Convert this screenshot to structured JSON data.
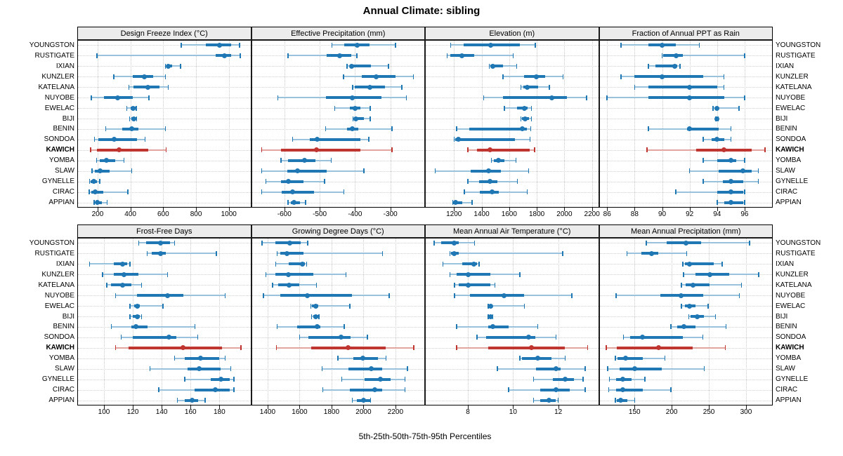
{
  "title": "Annual Climate: sibling",
  "xlabel": "5th-25th-50th-75th-95th Percentiles",
  "colors": {
    "series_blue": "#1f77b4",
    "series_blue_light": "#9ac2dd",
    "highlight_red": "#bf3530",
    "highlight_red_light": "#e2a5a0",
    "strip_bg": "#ececec",
    "grid": "#c9c9c9",
    "panel_border": "#1a1a1a",
    "background": "#ffffff"
  },
  "chart_data": {
    "type": "dotplot-percentile-trellis",
    "percentile_labels": [
      "5th",
      "25th",
      "50th",
      "75th",
      "95th"
    ],
    "stations": [
      "YOUNGSTON",
      "RUSTIGATE",
      "IXIAN",
      "KUNZLER",
      "KATELANA",
      "NUYOBE",
      "EWELAC",
      "BIJI",
      "BENIN",
      "SONDOA",
      "KAWICH",
      "YOMBA",
      "SLAW",
      "GYNELLE",
      "CIRAC",
      "APPIAN"
    ],
    "highlight_station": "KAWICH",
    "layout": {
      "grid_rows": 2,
      "grid_cols": 4,
      "gridlines": "dotted",
      "station_labels": "both-sides"
    },
    "panels": [
      {
        "title": "Design Freeze Index (°C)",
        "ticks": [
          200,
          400,
          600,
          800,
          1000
        ],
        "domain": [
          76,
          1136
        ],
        "values": [
          [
            710,
            860,
            945,
            1012,
            1065
          ],
          [
            195,
            920,
            975,
            1015,
            1070
          ],
          [
            613,
            620,
            630,
            655,
            705
          ],
          [
            299,
            413,
            485,
            540,
            613
          ],
          [
            390,
            417,
            505,
            575,
            630
          ],
          [
            162,
            237,
            322,
            413,
            513
          ],
          [
            379,
            400,
            417,
            431,
            435
          ],
          [
            396,
            406,
            421,
            434,
            438
          ],
          [
            250,
            350,
            410,
            448,
            613
          ],
          [
            180,
            205,
            300,
            440,
            490
          ],
          [
            157,
            197,
            330,
            510,
            618
          ],
          [
            194,
            211,
            254,
            306,
            360
          ],
          [
            165,
            183,
            214,
            275,
            407
          ],
          [
            152,
            159,
            176,
            197,
            214
          ],
          [
            148,
            162,
            187,
            233,
            384
          ],
          [
            179,
            187,
            200,
            226,
            258
          ]
        ]
      },
      {
        "title": "Effective Precipitation (mm)",
        "ticks": [
          -600,
          -500,
          -400,
          -300
        ],
        "domain": [
          -694,
          -202
        ],
        "values": [
          [
            -465,
            -430,
            -393,
            -360,
            -285
          ],
          [
            -590,
            -480,
            -443,
            -410,
            -395
          ],
          [
            -423,
            -415,
            -410,
            -355,
            -305
          ],
          [
            -433,
            -380,
            -340,
            -285,
            -235
          ],
          [
            -407,
            -400,
            -359,
            -315,
            -268
          ],
          [
            -618,
            -483,
            -407,
            -325,
            -255
          ],
          [
            -457,
            -415,
            -400,
            -385,
            -357
          ],
          [
            -406,
            -402,
            -397,
            -375,
            -357
          ],
          [
            -483,
            -423,
            -407,
            -390,
            -295
          ],
          [
            -577,
            -528,
            -507,
            -385,
            -361
          ],
          [
            -664,
            -610,
            -510,
            -385,
            -295
          ],
          [
            -610,
            -590,
            -543,
            -512,
            -467
          ],
          [
            -664,
            -592,
            -562,
            -480,
            -375
          ],
          [
            -652,
            -610,
            -588,
            -546,
            -486
          ],
          [
            -664,
            -608,
            -576,
            -516,
            -432
          ],
          [
            -590,
            -582,
            -572,
            -556,
            -540
          ]
        ]
      },
      {
        "title": "Elevation (m)",
        "ticks": [
          1200,
          1400,
          1600,
          1800,
          2000,
          2200
        ],
        "domain": [
          990,
          2250
        ],
        "values": [
          [
            1175,
            1270,
            1465,
            1675,
            1790
          ],
          [
            1150,
            1175,
            1255,
            1345,
            1630
          ],
          [
            1455,
            1465,
            1480,
            1555,
            1655
          ],
          [
            1555,
            1710,
            1795,
            1860,
            1990
          ],
          [
            1685,
            1705,
            1730,
            1810,
            1890
          ],
          [
            1415,
            1555,
            1910,
            2020,
            2160
          ],
          [
            1565,
            1655,
            1710,
            1735,
            1760
          ],
          [
            1685,
            1695,
            1715,
            1745,
            1760
          ],
          [
            1220,
            1310,
            1695,
            1730,
            1755
          ],
          [
            1200,
            1210,
            1230,
            1640,
            1750
          ],
          [
            1300,
            1365,
            1460,
            1750,
            1785
          ],
          [
            1470,
            1490,
            1520,
            1565,
            1650
          ],
          [
            1065,
            1320,
            1450,
            1540,
            1740
          ],
          [
            1300,
            1380,
            1460,
            1515,
            1660
          ],
          [
            1275,
            1385,
            1475,
            1525,
            1730
          ],
          [
            1190,
            1195,
            1210,
            1260,
            1330
          ]
        ]
      },
      {
        "title": "Fraction of Annual PPT as Rain",
        "ticks": [
          86,
          88,
          90,
          92,
          94,
          96
        ],
        "domain": [
          85.4,
          98.05
        ],
        "values": [
          [
            87,
            89,
            90,
            91,
            92.7
          ],
          [
            90,
            90.1,
            91,
            91.5,
            96
          ],
          [
            89,
            89.5,
            90.9,
            91.1,
            91.3
          ],
          [
            87,
            88,
            90,
            93,
            94.5
          ],
          [
            88,
            89,
            92,
            94,
            94.5
          ],
          [
            86,
            89,
            92,
            94.5,
            96
          ],
          [
            93.7,
            93.9,
            94,
            94.1,
            95.6
          ],
          [
            93.9,
            93.95,
            94,
            94.05,
            94.1
          ],
          [
            89,
            91.8,
            92,
            94.1,
            95
          ],
          [
            93,
            93.6,
            94,
            94.5,
            95
          ],
          [
            88.9,
            92.5,
            94.5,
            96.5,
            97.5
          ],
          [
            93,
            94,
            95,
            95.4,
            96
          ],
          [
            92,
            94.1,
            95.9,
            96.5,
            97
          ],
          [
            93,
            94.4,
            95,
            95.9,
            97
          ],
          [
            91,
            94,
            95,
            95.9,
            96
          ],
          [
            94,
            94.5,
            95,
            95.9,
            96
          ]
        ]
      },
      {
        "title": "Frost-Free Days",
        "ticks": [
          100,
          120,
          140,
          160,
          180
        ],
        "domain": [
          81.5,
          202
        ],
        "values": [
          [
            124,
            129,
            139,
            146,
            149
          ],
          [
            130,
            133,
            139,
            143,
            178
          ],
          [
            90,
            107,
            113,
            116,
            118
          ],
          [
            99,
            107,
            114,
            124,
            144
          ],
          [
            102,
            105,
            113,
            119,
            126
          ],
          [
            108,
            123,
            144,
            155,
            184
          ],
          [
            118,
            121,
            123,
            125,
            141
          ],
          [
            118,
            120,
            123,
            125,
            126
          ],
          [
            105,
            119,
            122,
            130,
            163
          ],
          [
            112,
            120,
            145,
            150,
            165
          ],
          [
            108,
            117,
            155,
            182,
            195
          ],
          [
            149,
            156,
            167,
            180,
            184
          ],
          [
            132,
            158,
            166,
            181,
            188
          ],
          [
            156,
            174,
            181,
            187,
            190
          ],
          [
            138,
            163,
            177,
            187,
            190
          ],
          [
            151,
            156,
            161,
            165,
            170
          ]
        ]
      },
      {
        "title": "Growing Degree Days (°C)",
        "ticks": [
          1400,
          1600,
          1800,
          2000,
          2200
        ],
        "domain": [
          1297,
          2385
        ],
        "values": [
          [
            1365,
            1450,
            1540,
            1605,
            1650
          ],
          [
            1460,
            1480,
            1520,
            1625,
            2120
          ],
          [
            1450,
            1530,
            1620,
            1635,
            1645
          ],
          [
            1390,
            1450,
            1530,
            1685,
            1890
          ],
          [
            1430,
            1465,
            1535,
            1600,
            1705
          ],
          [
            1375,
            1480,
            1650,
            1930,
            2160
          ],
          [
            1670,
            1678,
            1700,
            1717,
            1915
          ],
          [
            1675,
            1686,
            1700,
            1717,
            1721
          ],
          [
            1460,
            1585,
            1710,
            1730,
            1880
          ],
          [
            1600,
            1655,
            1860,
            1920,
            2025
          ],
          [
            1455,
            1675,
            1905,
            2140,
            2315
          ],
          [
            1840,
            1935,
            1995,
            2090,
            2140
          ],
          [
            1740,
            1905,
            2050,
            2115,
            2275
          ],
          [
            1865,
            2005,
            2105,
            2170,
            2260
          ],
          [
            1745,
            1915,
            2070,
            2115,
            2260
          ],
          [
            1930,
            1960,
            2000,
            2040,
            2045
          ]
        ]
      },
      {
        "title": "Mean Annual Air Temperature (°C)",
        "ticks": [
          8,
          10,
          12
        ],
        "domain": [
          6.1,
          13.8
        ],
        "values": [
          [
            6.5,
            6.8,
            7.4,
            7.6,
            8.3
          ],
          [
            7.2,
            7.25,
            7.4,
            7.6,
            12.2
          ],
          [
            6.9,
            7.75,
            8.25,
            8.4,
            8.5
          ],
          [
            7.2,
            7.5,
            8.0,
            9.0,
            10.3
          ],
          [
            7.4,
            7.6,
            8.0,
            9.0,
            9.2
          ],
          [
            7.4,
            8.1,
            9.6,
            10.5,
            12.6
          ],
          [
            8.9,
            8.95,
            9.0,
            9.1,
            10.5
          ],
          [
            8.9,
            8.95,
            9.0,
            9.05,
            9.1
          ],
          [
            7.5,
            8.9,
            9.1,
            9.8,
            11.1
          ],
          [
            8.4,
            8.8,
            10.7,
            11.0,
            11.9
          ],
          [
            7.5,
            8.9,
            10.8,
            12.3,
            13.3
          ],
          [
            10.3,
            10.4,
            11.1,
            11.7,
            12.3
          ],
          [
            9.3,
            11.0,
            11.9,
            12.1,
            13.2
          ],
          [
            10.9,
            11.75,
            12.3,
            12.7,
            13.1
          ],
          [
            9.8,
            11.2,
            11.9,
            12.5,
            13.2
          ],
          [
            10.9,
            11.2,
            11.6,
            11.9,
            12.0
          ]
        ]
      },
      {
        "title": "Mean Annual Precipitation (mm)",
        "ticks": [
          150,
          200,
          250,
          300
        ],
        "domain": [
          102,
          336
        ],
        "values": [
          [
            166,
            193,
            219,
            240,
            305
          ],
          [
            140,
            159,
            173,
            182,
            220
          ],
          [
            215,
            218,
            224,
            257,
            268
          ],
          [
            216,
            232,
            251,
            277,
            317
          ],
          [
            213,
            219,
            229,
            251,
            294
          ],
          [
            125,
            185,
            213,
            242,
            291
          ],
          [
            213,
            218,
            224,
            232,
            249
          ],
          [
            223,
            225,
            234,
            243,
            259
          ],
          [
            199,
            207,
            216,
            232,
            273
          ],
          [
            135,
            144,
            161,
            215,
            242
          ],
          [
            112,
            126,
            182,
            228,
            272
          ],
          [
            124,
            127,
            138,
            161,
            191
          ],
          [
            114,
            130,
            150,
            187,
            244
          ],
          [
            116,
            125,
            134,
            146,
            164
          ],
          [
            115,
            125,
            134,
            161,
            199
          ],
          [
            124,
            126,
            131,
            140,
            150
          ]
        ]
      }
    ]
  }
}
